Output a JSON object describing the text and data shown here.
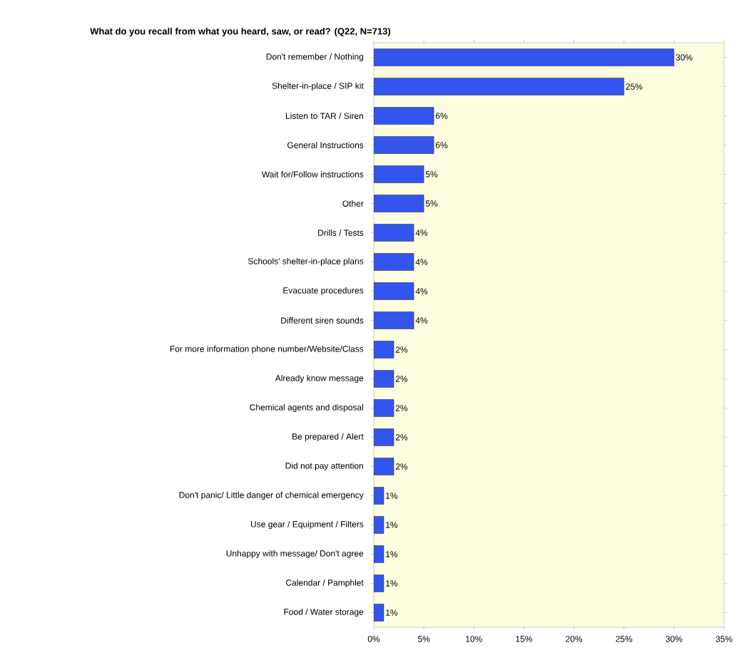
{
  "chart_data": {
    "type": "bar",
    "orientation": "horizontal",
    "title": "What do you recall from what you heard, saw, or read? (Q22, N=713)",
    "categories": [
      "Don't remember / Nothing",
      "Shelter-in-place / SIP kit",
      "Listen to TAR / Siren",
      "General Instructions",
      "Wait for/Follow instructions",
      "Other",
      "Drills / Tests",
      "Schools' shelter-in-place plans",
      "Evacuate procedures",
      "Different siren sounds",
      "For more information phone number/Website/Class",
      "Already know message",
      "Chemical agents and disposal",
      "Be prepared / Alert",
      "Did not pay attention",
      "Don't panic/ Little danger of chemical emergency",
      "Use gear / Equipment / Filters",
      "Unhappy with message/ Don't agree",
      "Calendar / Pamphlet",
      "Food / Water storage"
    ],
    "values": [
      30,
      25,
      6,
      6,
      5,
      5,
      4,
      4,
      4,
      4,
      2,
      2,
      2,
      2,
      2,
      1,
      1,
      1,
      1,
      1
    ],
    "value_labels": [
      "30%",
      "25%",
      "6%",
      "6%",
      "5%",
      "5%",
      "4%",
      "4%",
      "4%",
      "4%",
      "2%",
      "2%",
      "2%",
      "2%",
      "2%",
      "1%",
      "1%",
      "1%",
      "1%",
      "1%"
    ],
    "color": "#3355ee",
    "xlim": [
      0,
      35
    ],
    "xticks": [
      {
        "value": 0,
        "label": "0%"
      },
      {
        "value": 5,
        "label": "5%"
      },
      {
        "value": 10,
        "label": "10%"
      },
      {
        "value": 15,
        "label": "15%"
      },
      {
        "value": 20,
        "label": "20%"
      },
      {
        "value": 25,
        "label": "25%"
      },
      {
        "value": 30,
        "label": "30%"
      },
      {
        "value": 35,
        "label": "35%"
      }
    ]
  }
}
